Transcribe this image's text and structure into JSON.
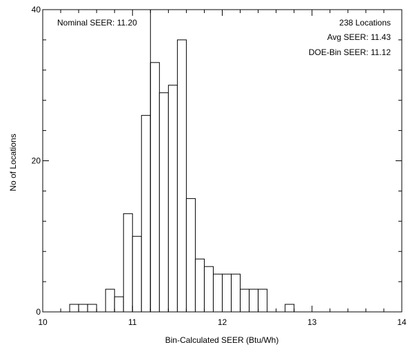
{
  "chart_data": {
    "type": "bar",
    "title": "",
    "xlabel": "Bin-Calculated SEER (Btu/Wh)",
    "ylabel": "No of Locations",
    "xlim": [
      10,
      14
    ],
    "ylim": [
      0,
      40
    ],
    "x_ticks": [
      10,
      11,
      12,
      13,
      14
    ],
    "x_tick_labels": [
      "10",
      "11",
      "12",
      "13",
      "14"
    ],
    "y_ticks": [
      0,
      20,
      40
    ],
    "y_tick_labels": [
      "0",
      "20",
      "40"
    ],
    "bin_width": 0.1,
    "bins": [
      {
        "x0": 10.3,
        "value": 1
      },
      {
        "x0": 10.4,
        "value": 1
      },
      {
        "x0": 10.5,
        "value": 1
      },
      {
        "x0": 10.7,
        "value": 3
      },
      {
        "x0": 10.8,
        "value": 2
      },
      {
        "x0": 10.9,
        "value": 13
      },
      {
        "x0": 11.0,
        "value": 10
      },
      {
        "x0": 11.1,
        "value": 26
      },
      {
        "x0": 11.2,
        "value": 33
      },
      {
        "x0": 11.3,
        "value": 29
      },
      {
        "x0": 11.4,
        "value": 30
      },
      {
        "x0": 11.5,
        "value": 36
      },
      {
        "x0": 11.6,
        "value": 15
      },
      {
        "x0": 11.7,
        "value": 7
      },
      {
        "x0": 11.8,
        "value": 6
      },
      {
        "x0": 11.9,
        "value": 5
      },
      {
        "x0": 12.0,
        "value": 5
      },
      {
        "x0": 12.1,
        "value": 5
      },
      {
        "x0": 12.2,
        "value": 3
      },
      {
        "x0": 12.3,
        "value": 3
      },
      {
        "x0": 12.4,
        "value": 3
      },
      {
        "x0": 12.7,
        "value": 1
      }
    ],
    "reference_line": {
      "x": 11.2,
      "label": "Nominal SEER: 11.20"
    },
    "annotations": [
      "238 Locations",
      "Avg SEER: 11.43",
      "DOE-Bin SEER: 11.12"
    ],
    "grid": false,
    "line_color": "#000000",
    "bar_fill": "#ffffff"
  }
}
